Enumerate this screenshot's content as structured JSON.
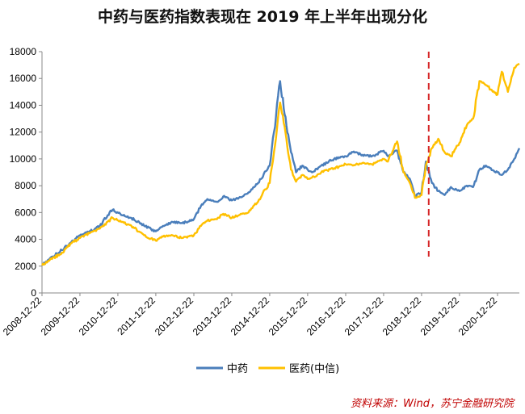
{
  "chart_data": {
    "type": "line",
    "title": "中药与医药指数表现在 2019 年上半年出现分化",
    "xlabel": "",
    "ylabel": "",
    "ylim": [
      0,
      18000
    ],
    "yticks": [
      0,
      2000,
      4000,
      6000,
      8000,
      10000,
      12000,
      14000,
      16000,
      18000
    ],
    "x_ticks": [
      "2008-12-22",
      "2009-12-22",
      "2010-12-22",
      "2011-12-22",
      "2012-12-22",
      "2013-12-22",
      "2014-12-22",
      "2015-12-22",
      "2016-12-22",
      "2017-12-22",
      "2018-12-22",
      "2019-12-22",
      "2020-12-22"
    ],
    "xlim": [
      "2008-12-22",
      "2021-07-20"
    ],
    "grid": false,
    "legend_position": "bottom",
    "annotation": {
      "type": "vertical-dashed-line",
      "x": "2019-03-01",
      "color": "#d62728"
    },
    "series": [
      {
        "name": "中药",
        "color": "#4a7ebb",
        "x": [
          "2008-12-22",
          "2009-03-01",
          "2009-07-01",
          "2009-10-01",
          "2009-12-22",
          "2010-04-01",
          "2010-07-01",
          "2010-11-01",
          "2011-02-01",
          "2011-05-01",
          "2011-09-01",
          "2011-12-22",
          "2012-03-01",
          "2012-06-01",
          "2012-09-01",
          "2012-12-22",
          "2013-03-01",
          "2013-05-01",
          "2013-08-01",
          "2013-10-01",
          "2013-12-22",
          "2014-03-01",
          "2014-06-01",
          "2014-09-01",
          "2014-12-22",
          "2015-02-01",
          "2015-04-01",
          "2015-06-01",
          "2015-07-15",
          "2015-09-01",
          "2015-11-01",
          "2015-12-22",
          "2016-02-01",
          "2016-05-01",
          "2016-09-01",
          "2016-12-22",
          "2017-03-01",
          "2017-06-01",
          "2017-09-01",
          "2017-12-22",
          "2018-02-01",
          "2018-05-01",
          "2018-07-01",
          "2018-09-01",
          "2018-10-20",
          "2018-12-22",
          "2019-02-01",
          "2019-04-01",
          "2019-06-01",
          "2019-08-01",
          "2019-10-01",
          "2019-12-22",
          "2020-03-01",
          "2020-05-01",
          "2020-07-01",
          "2020-09-01",
          "2020-12-22",
          "2021-02-01",
          "2021-04-01",
          "2021-06-01",
          "2021-07-20"
        ],
        "values": [
          2100,
          2500,
          3200,
          3800,
          4300,
          4600,
          5000,
          6200,
          5800,
          5600,
          5000,
          4600,
          5000,
          5300,
          5200,
          5500,
          6500,
          7000,
          6800,
          7200,
          6900,
          7100,
          7500,
          8200,
          9500,
          12000,
          15800,
          12500,
          10500,
          9000,
          9500,
          9200,
          9000,
          9500,
          10000,
          10200,
          10500,
          10300,
          10200,
          10600,
          10200,
          10600,
          9000,
          8500,
          7200,
          7500,
          9800,
          8200,
          7600,
          7300,
          7900,
          7600,
          8000,
          7900,
          9200,
          9500,
          9000,
          8800,
          9200,
          10000,
          10800
        ]
      },
      {
        "name": "医药(中信)",
        "color": "#ffc000",
        "x": [
          "2008-12-22",
          "2009-03-01",
          "2009-07-01",
          "2009-10-01",
          "2009-12-22",
          "2010-04-01",
          "2010-07-01",
          "2010-11-01",
          "2011-02-01",
          "2011-05-01",
          "2011-09-01",
          "2011-12-22",
          "2012-03-01",
          "2012-06-01",
          "2012-09-01",
          "2012-12-22",
          "2013-03-01",
          "2013-05-01",
          "2013-08-01",
          "2013-10-01",
          "2013-12-22",
          "2014-03-01",
          "2014-06-01",
          "2014-09-01",
          "2014-12-22",
          "2015-02-01",
          "2015-04-01",
          "2015-06-01",
          "2015-07-15",
          "2015-09-01",
          "2015-11-01",
          "2015-12-22",
          "2016-02-01",
          "2016-05-01",
          "2016-09-01",
          "2016-12-22",
          "2017-03-01",
          "2017-06-01",
          "2017-09-01",
          "2017-12-22",
          "2018-02-01",
          "2018-05-01",
          "2018-07-01",
          "2018-09-01",
          "2018-10-20",
          "2018-12-22",
          "2019-02-01",
          "2019-04-01",
          "2019-06-01",
          "2019-08-01",
          "2019-10-01",
          "2019-12-22",
          "2020-03-01",
          "2020-05-01",
          "2020-07-01",
          "2020-09-01",
          "2020-12-22",
          "2021-02-01",
          "2021-04-01",
          "2021-06-01",
          "2021-07-20"
        ],
        "values": [
          2050,
          2400,
          3000,
          3700,
          4100,
          4500,
          4800,
          5600,
          5300,
          5000,
          4300,
          3900,
          4200,
          4300,
          4100,
          4300,
          5000,
          5400,
          5500,
          5900,
          5600,
          5800,
          6000,
          6800,
          8200,
          10500,
          14200,
          11500,
          9200,
          8300,
          8800,
          8500,
          8600,
          9000,
          9300,
          9600,
          9500,
          9700,
          9600,
          10000,
          9800,
          11300,
          9000,
          8200,
          7100,
          7300,
          9500,
          10800,
          11500,
          10500,
          10200,
          11200,
          12500,
          13000,
          15800,
          15500,
          14800,
          16500,
          15000,
          16800,
          17100
        ]
      }
    ]
  },
  "legend": {
    "items": [
      {
        "label": "中药",
        "color": "#4a7ebb"
      },
      {
        "label": "医药(中信)",
        "color": "#ffc000"
      }
    ]
  },
  "source": "资料来源：Wind，苏宁金融研究院"
}
